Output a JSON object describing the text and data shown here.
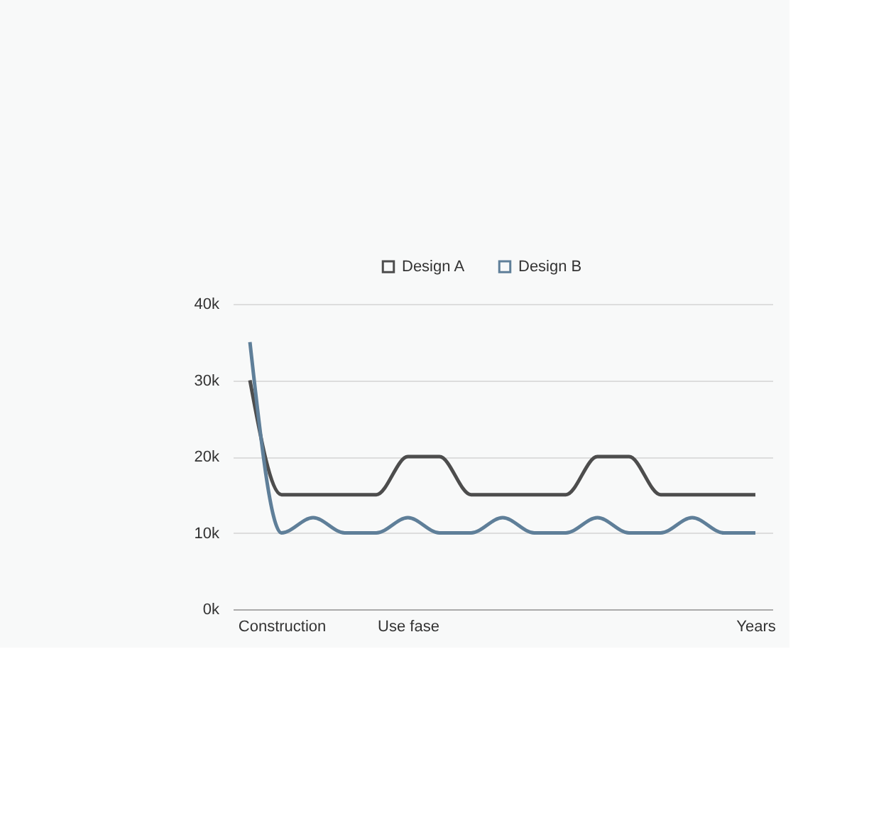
{
  "chart_data": {
    "type": "line",
    "categories": [
      null,
      "Construction",
      null,
      null,
      null,
      "Use fase",
      null,
      null,
      null,
      null,
      null,
      null,
      null,
      null,
      null,
      null,
      "Years"
    ],
    "series": [
      {
        "name": "Design A",
        "color": "#4d4d4d",
        "values": [
          30000,
          15000,
          15000,
          15000,
          15000,
          20000,
          20000,
          15000,
          15000,
          15000,
          15000,
          20000,
          20000,
          15000,
          15000,
          15000,
          15000
        ]
      },
      {
        "name": "Design B",
        "color": "#5f7f99",
        "values": [
          35000,
          10000,
          12000,
          10000,
          10000,
          12000,
          10000,
          10000,
          12000,
          10000,
          10000,
          12000,
          10000,
          10000,
          12000,
          10000,
          10000
        ]
      }
    ],
    "ylim": [
      0,
      40000
    ],
    "yticks": [
      {
        "value": 0,
        "label": "0k"
      },
      {
        "value": 10000,
        "label": "10k"
      },
      {
        "value": 20000,
        "label": "20k"
      },
      {
        "value": 30000,
        "label": "30k"
      },
      {
        "value": 40000,
        "label": "40k"
      }
    ],
    "grid": "y",
    "legend": "top",
    "marker": "none",
    "line_style": "solid"
  }
}
